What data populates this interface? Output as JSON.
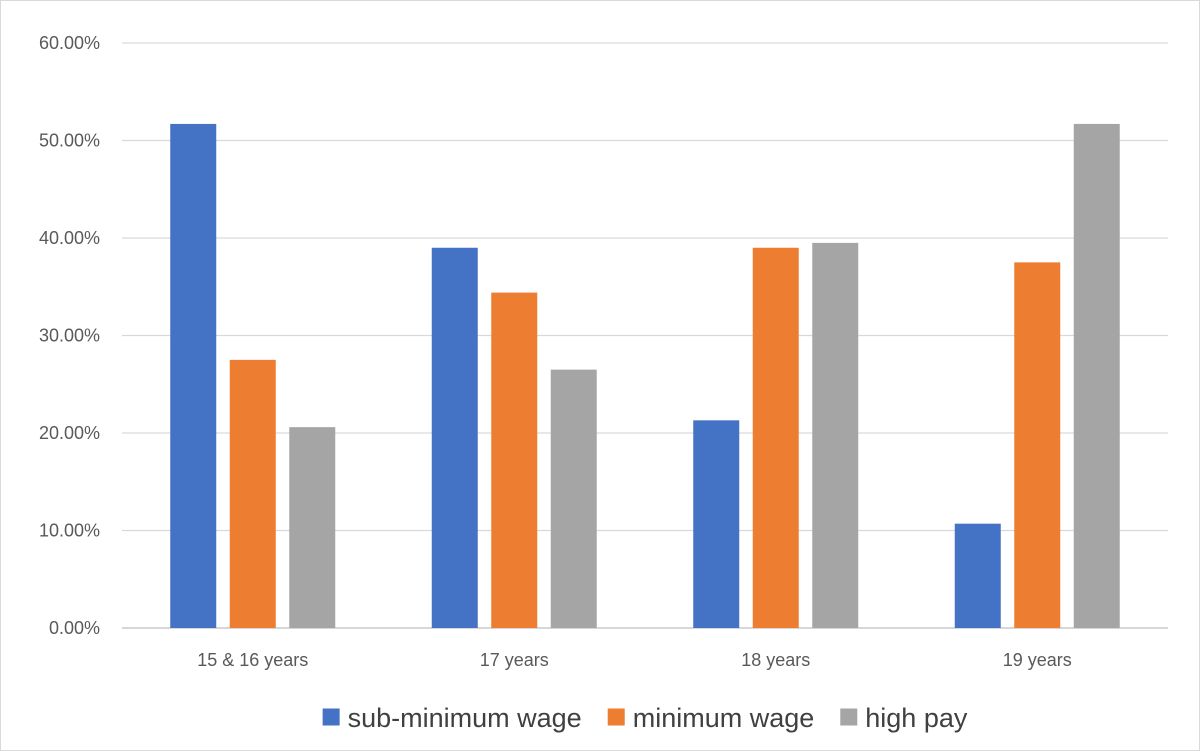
{
  "chart_data": {
    "type": "bar",
    "categories": [
      "15 & 16 years",
      "17 years",
      "18 years",
      "19 years"
    ],
    "series": [
      {
        "name": "sub-minimum wage",
        "color": "#4472c4",
        "values": [
          0.517,
          0.39,
          0.213,
          0.107
        ]
      },
      {
        "name": "minimum wage",
        "color": "#ed7d31",
        "values": [
          0.275,
          0.344,
          0.39,
          0.375
        ]
      },
      {
        "name": "high pay",
        "color": "#a5a5a5",
        "values": [
          0.206,
          0.265,
          0.395,
          0.517
        ]
      }
    ],
    "ylim": [
      0,
      0.6
    ],
    "yticks": [
      0,
      0.1,
      0.2,
      0.3,
      0.4,
      0.5,
      0.6
    ],
    "ytick_labels": [
      "0.00%",
      "10.00%",
      "20.00%",
      "30.00%",
      "40.00%",
      "50.00%",
      "60.00%"
    ],
    "grid": true,
    "legend_position": "bottom",
    "title": "",
    "xlabel": "",
    "ylabel": ""
  }
}
